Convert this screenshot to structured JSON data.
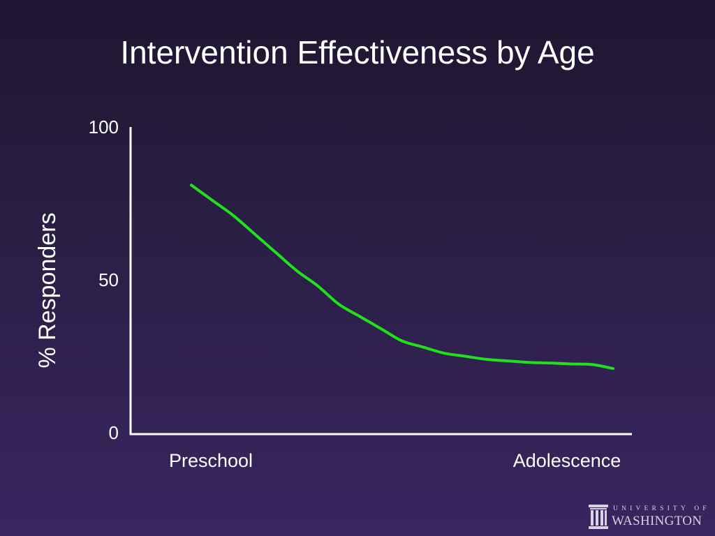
{
  "slide": {
    "title": "Intervention Effectiveness by Age"
  },
  "chart_data": {
    "type": "line",
    "title": "Intervention Effectiveness by Age",
    "ylabel": "% Responders",
    "xlabel": "",
    "categories": [
      "Preschool",
      "Adolescence"
    ],
    "ylim": [
      0,
      100
    ],
    "yticks": [
      "0",
      "50",
      "100"
    ],
    "xlim": [
      0,
      1
    ],
    "series": [
      {
        "color": "#22e01c",
        "x": [
          0.0,
          0.05,
          0.1,
          0.15,
          0.2,
          0.25,
          0.3,
          0.35,
          0.4,
          0.45,
          0.5,
          0.55,
          0.6,
          0.65,
          0.7,
          0.75,
          0.8,
          0.85,
          0.9,
          0.95,
          1.0
        ],
        "y": [
          81,
          76,
          71,
          65,
          59,
          53,
          48,
          42,
          38,
          34,
          30,
          28,
          26,
          25,
          24,
          23.5,
          23,
          22.8,
          22.5,
          22.3,
          21
        ]
      }
    ],
    "grid": false,
    "axis_color": "#ffffff"
  },
  "logo": {
    "line1": "UNIVERSITY OF",
    "line2": "WASHINGTON",
    "icon": "pillars-icon",
    "color": "#d8d2e4"
  }
}
